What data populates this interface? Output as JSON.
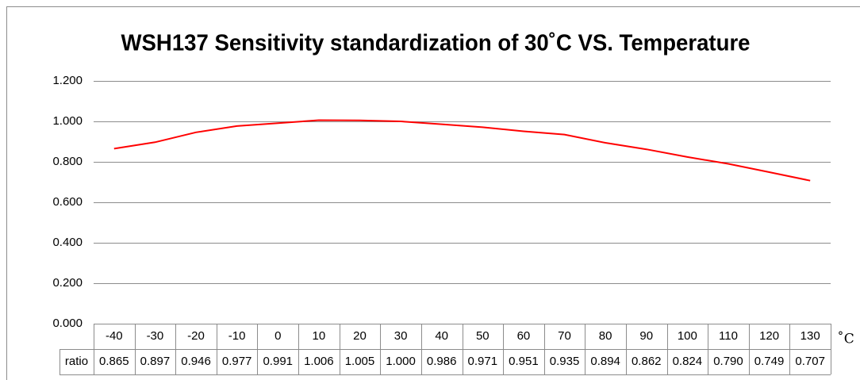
{
  "chart_data": {
    "type": "line",
    "title": "WSH137 Sensitivity standardization of 30˚C VS. Temperature",
    "x_label": "˚C",
    "categories": [
      "-40",
      "-30",
      "-20",
      "-10",
      "0",
      "10",
      "20",
      "30",
      "40",
      "50",
      "60",
      "70",
      "80",
      "90",
      "100",
      "110",
      "120",
      "130"
    ],
    "series": [
      {
        "name": "ratio",
        "color": "#ff0000",
        "values": [
          0.865,
          0.897,
          0.946,
          0.977,
          0.991,
          1.006,
          1.005,
          1.0,
          0.986,
          0.971,
          0.951,
          0.935,
          0.894,
          0.862,
          0.824,
          0.79,
          0.749,
          0.707
        ],
        "value_labels": [
          "0.865",
          "0.897",
          "0.946",
          "0.977",
          "0.991",
          "1.006",
          "1.005",
          "1.000",
          "0.986",
          "0.971",
          "0.951",
          "0.935",
          "0.894",
          "0.862",
          "0.824",
          "0.790",
          "0.749",
          "0.707"
        ]
      }
    ],
    "ylim": [
      0,
      1.2
    ],
    "yticks": [
      {
        "value": 0,
        "label": "0.000"
      },
      {
        "value": 0.2,
        "label": "0.200"
      },
      {
        "value": 0.4,
        "label": "0.400"
      },
      {
        "value": 0.6,
        "label": "0.600"
      },
      {
        "value": 0.8,
        "label": "0.800"
      },
      {
        "value": 1.0,
        "label": "1.000"
      },
      {
        "value": 1.2,
        "label": "1.200"
      }
    ],
    "grid": true
  }
}
